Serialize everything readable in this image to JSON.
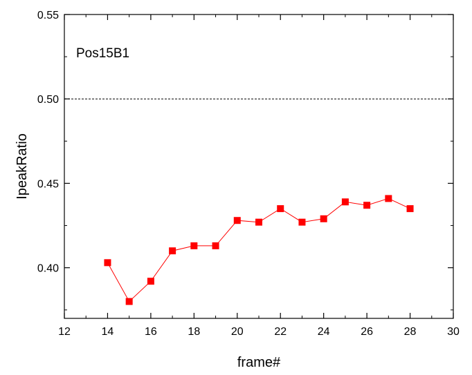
{
  "chart_data": {
    "type": "line",
    "title": "",
    "xlabel": "frame#",
    "ylabel": "IpeakRatio",
    "xlim": [
      12,
      30
    ],
    "ylim": [
      0.37,
      0.55
    ],
    "x_ticks": [
      "12",
      "14",
      "16",
      "18",
      "20",
      "22",
      "24",
      "26",
      "28",
      "30"
    ],
    "y_ticks": [
      "0.40",
      "0.45",
      "0.50",
      "0.55"
    ],
    "annotation": "Pos15B1",
    "reference_line": {
      "y": 0.5,
      "style": "dashed",
      "color": "#000000"
    },
    "grid": false,
    "legend": "none",
    "series": [
      {
        "color": "#ff0000",
        "marker": "square",
        "x": [
          14,
          15,
          16,
          17,
          18,
          19,
          20,
          21,
          22,
          23,
          24,
          25,
          26,
          27,
          28
        ],
        "y": [
          0.403,
          0.38,
          0.392,
          0.41,
          0.413,
          0.413,
          0.428,
          0.427,
          0.435,
          0.427,
          0.429,
          0.439,
          0.437,
          0.441,
          0.435
        ]
      }
    ]
  }
}
